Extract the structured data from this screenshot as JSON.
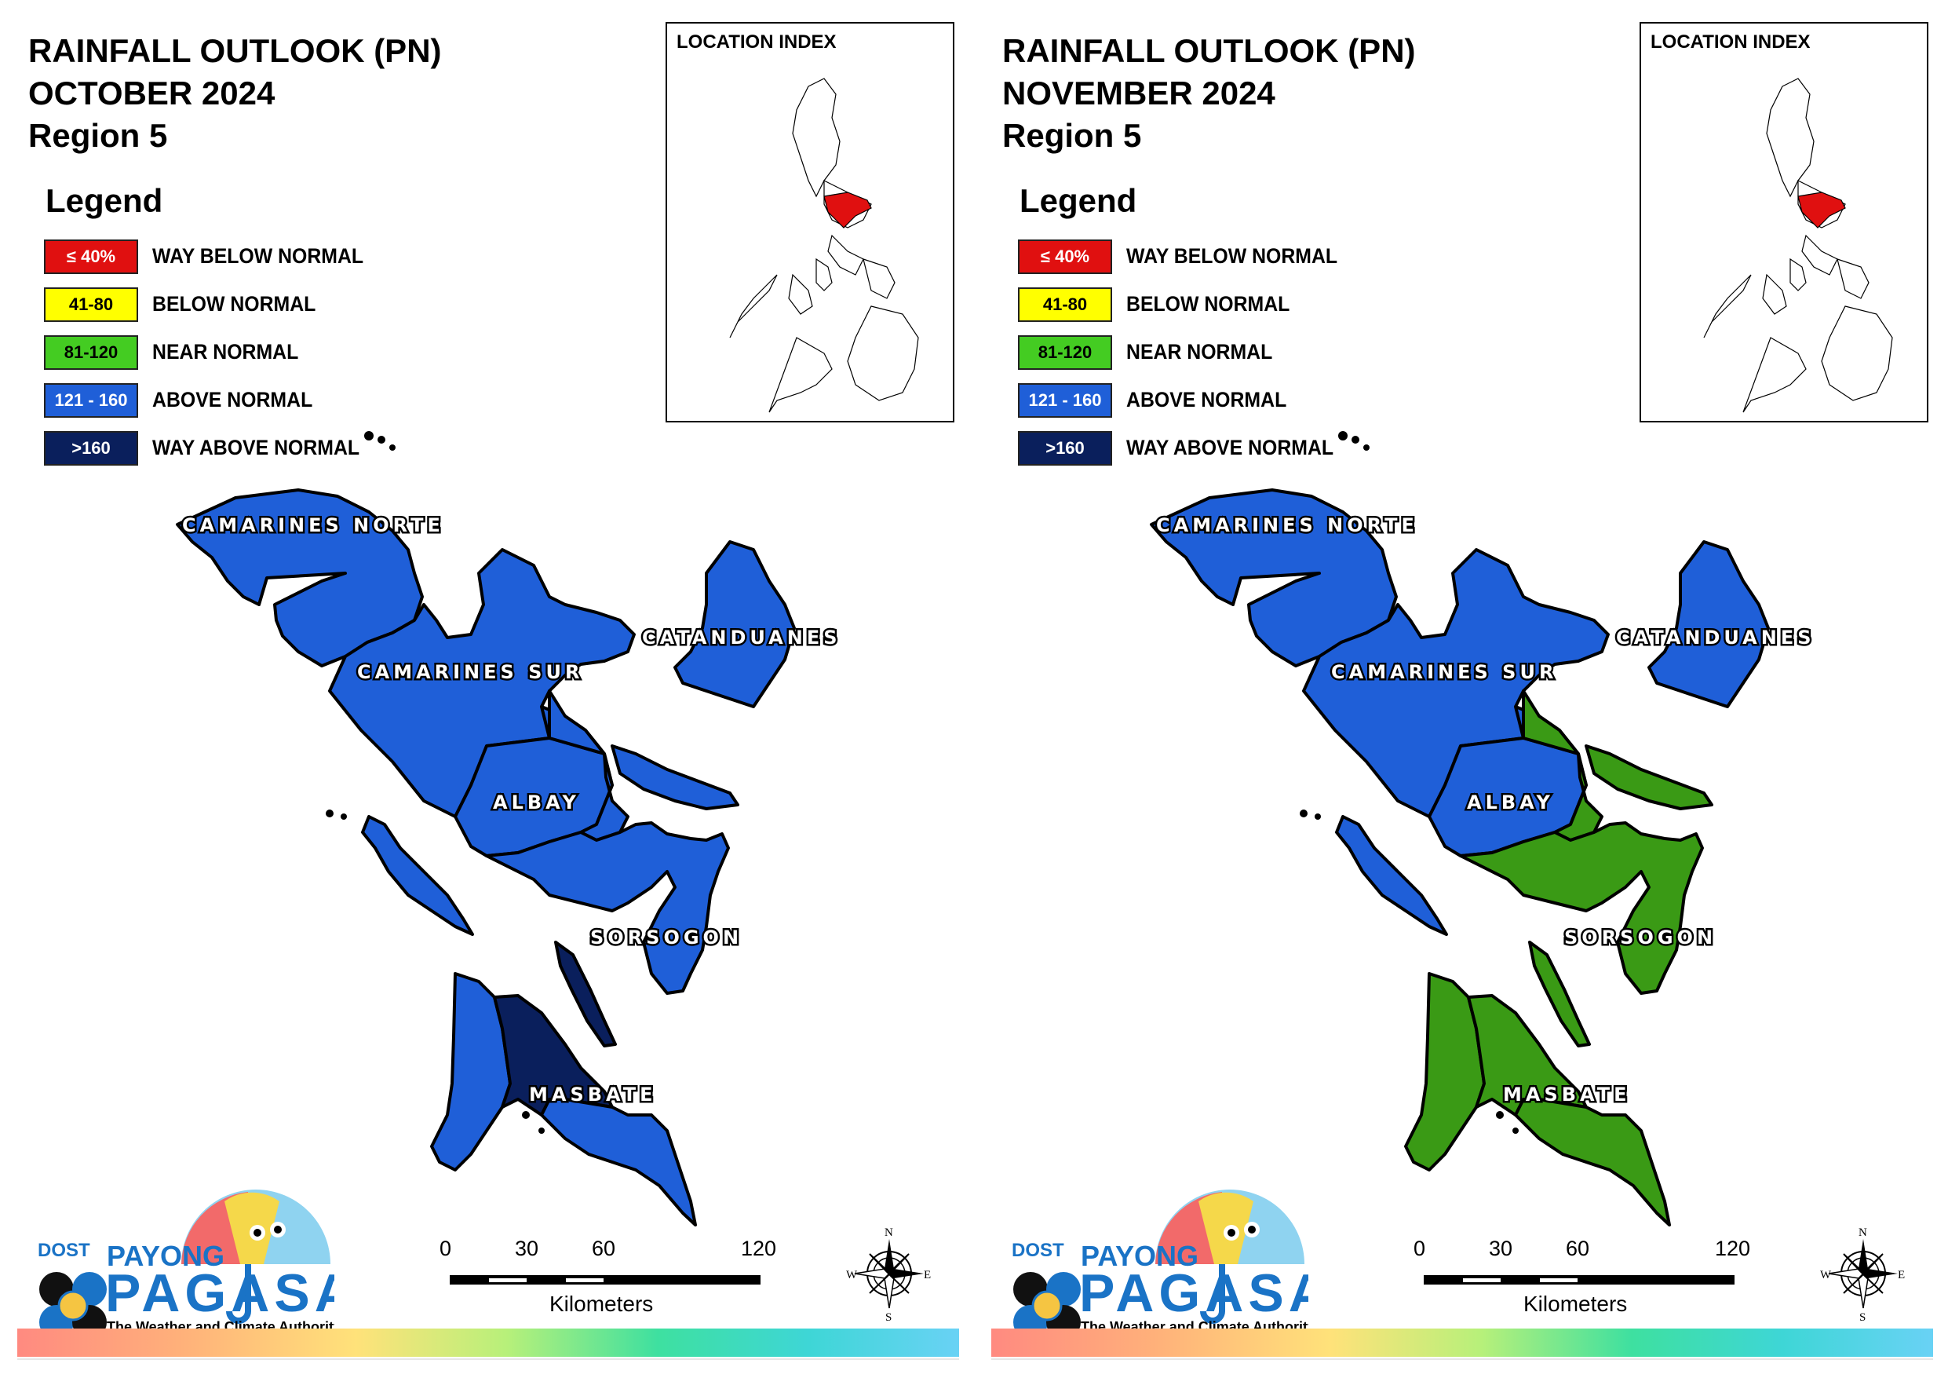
{
  "maps": [
    {
      "title_line1": "RAINFALL OUTLOOK (PN)",
      "title_line2": "OCTOBER 2024",
      "title_line3": "Region 5",
      "fills": {
        "camarines_norte": "#1f5fd8",
        "camarines_sur": "#1f5fd8",
        "catanduanes": "#1f5fd8",
        "albay_west": "#1f5fd8",
        "albay_east": "#1f5fd8",
        "sorsogon": "#1f5fd8",
        "burias": "#1f5fd8",
        "ticao": "#0a1f5c",
        "masbate_west": "#1f5fd8",
        "masbate_central": "#0a1f5c",
        "masbate_east": "#1f5fd8"
      }
    },
    {
      "title_line1": "RAINFALL OUTLOOK (PN)",
      "title_line2": "NOVEMBER 2024",
      "title_line3": "Region 5",
      "fills": {
        "camarines_norte": "#1f5fd8",
        "camarines_sur": "#1f5fd8",
        "catanduanes": "#1f5fd8",
        "albay_west": "#1f5fd8",
        "albay_east": "#3a9a15",
        "sorsogon": "#3a9a15",
        "burias": "#1f5fd8",
        "ticao": "#3a9a15",
        "masbate_west": "#3a9a15",
        "masbate_central": "#3a9a15",
        "masbate_east": "#3a9a15"
      }
    }
  ],
  "legend": {
    "heading": "Legend",
    "items": [
      {
        "range": "≤ 40%",
        "label": "WAY BELOW NORMAL",
        "color": "#e01010",
        "text_color": "#ffffff"
      },
      {
        "range": "41-80",
        "label": "BELOW NORMAL",
        "color": "#ffff00",
        "text_color": "#000000"
      },
      {
        "range": "81-120",
        "label": "NEAR NORMAL",
        "color": "#44cc22",
        "text_color": "#000000"
      },
      {
        "range": "121 - 160",
        "label": "ABOVE NORMAL",
        "color": "#1f5fd8",
        "text_color": "#ffffff"
      },
      {
        "range": ">160",
        "label": "WAY ABOVE NORMAL",
        "color": "#0a1f5c",
        "text_color": "#ffffff"
      }
    ]
  },
  "inset": {
    "title": "LOCATION INDEX",
    "highlight_color": "#e01010"
  },
  "provinces": {
    "camarines_norte": "CAMARINES NORTE",
    "camarines_sur": "CAMARINES SUR",
    "catanduanes": "CATANDUANES",
    "albay": "ALBAY",
    "sorsogon": "SORSOGON",
    "masbate": "MASBATE"
  },
  "scale": {
    "ticks": [
      "0",
      "30",
      "60",
      "120"
    ],
    "unit": "Kilometers"
  },
  "compass": {
    "n": "N",
    "s": "S",
    "e": "E",
    "w": "W"
  },
  "logo": {
    "dost": "DOST",
    "payong": "PAYONG",
    "pagasa": "PAGASA",
    "tagline": "The Weather and Climate Authority"
  }
}
